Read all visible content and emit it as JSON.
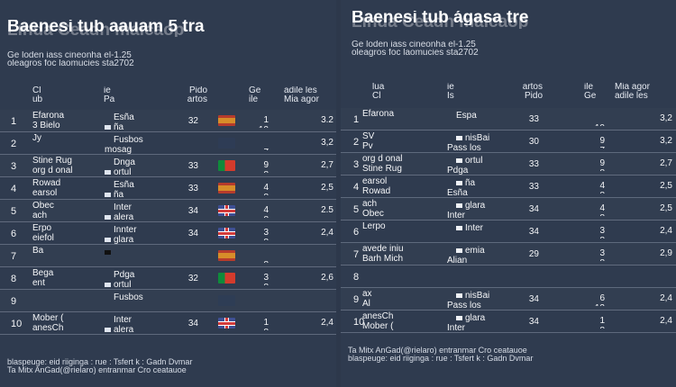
{
  "left": {
    "title_main": "Baenesi tub aauam 5 tra",
    "title_ghost": "Linda Ceadh maicaop",
    "subtitle_1": "Ge loden iass cineonha el-1.25",
    "subtitle_2": "oleagros foc laomucies sta2702",
    "headers": [
      {
        "key": "rank",
        "line1": "Cl",
        "line2": "ub"
      },
      {
        "key": "player",
        "line1": "ie",
        "line2": "Pa"
      },
      {
        "key": "matches",
        "line1": "Pido",
        "line2": "artos"
      },
      {
        "key": "goals",
        "line1": "Ge",
        "line2": "ile"
      },
      {
        "key": "avg",
        "line1": "adile les",
        "line2": "Mia agor"
      }
    ],
    "rows": [
      {
        "rank_ghost": "",
        "rank": "1",
        "player_1": "Efarona",
        "player_2": "3 Bielo",
        "country_1": "Esña",
        "country_2": "ña",
        "matches": "32",
        "goals_top": "1",
        "goals_bottom": "10",
        "avg": "3.2",
        "flag": "spain"
      },
      {
        "rank_ghost": "",
        "rank": "2",
        "player_1": "Jy",
        "player_2": "",
        "country_1": "Fusbos",
        "country_2": "mosag",
        "matches": "",
        "goals_top": "",
        "goals_bottom": "7",
        "avg": "3,2",
        "flag": "uk-ghost"
      },
      {
        "rank_ghost": "",
        "rank": "3",
        "player_1": "Stine Rug",
        "player_2": "org d onal",
        "country_1": "Dnga",
        "country_2": "ortul",
        "matches": "33",
        "goals_top": "9",
        "goals_bottom": "8",
        "avg": "2,7",
        "flag": "portugal"
      },
      {
        "rank_ghost": "",
        "rank": "4",
        "player_1": "Rowad",
        "player_2": "earsol",
        "country_1": "Esña",
        "country_2": "ña",
        "matches": "33",
        "goals_top": "4",
        "goals_bottom": "8",
        "avg": "2,5",
        "flag": "spain"
      },
      {
        "rank_ghost": "",
        "rank": "5",
        "player_1": "Obec",
        "player_2": "ach",
        "country_1": "Inter",
        "country_2": "alera",
        "matches": "34",
        "goals_top": "4",
        "goals_bottom": "8",
        "avg": "2.5",
        "flag": "uk"
      },
      {
        "rank_ghost": "",
        "rank": "6",
        "player_1": "Erpo",
        "player_2": "eiefol",
        "country_1": "Innter",
        "country_2": "glara",
        "matches": "34",
        "goals_top": "3",
        "goals_bottom": "8",
        "avg": "2,4",
        "flag": "uk"
      },
      {
        "rank_ghost": "",
        "rank": "7",
        "player_1": "Ba",
        "player_2": "",
        "country_1": "",
        "country_2": "",
        "matches": "",
        "goals_top": "",
        "goals_bottom": "8",
        "avg": "",
        "flag": "spain"
      },
      {
        "rank_ghost": "",
        "rank": "8",
        "player_1": "Bega",
        "player_2": "ent",
        "country_1": "Pdga",
        "country_2": "ortul",
        "matches": "32",
        "goals_top": "3",
        "goals_bottom": "8",
        "avg": "2,6",
        "flag": "portugal"
      },
      {
        "rank_ghost": "",
        "rank": "9",
        "player_1": "",
        "player_2": "",
        "country_1": "Fusbos",
        "country_2": "",
        "matches": "",
        "goals_top": "",
        "goals_bottom": "",
        "avg": "",
        "flag": "uk-ghost"
      },
      {
        "rank_ghost": "",
        "rank": "10",
        "player_1": "Mober (",
        "player_2": "anesCh",
        "country_1": "Inter",
        "country_2": "alera",
        "matches": "34",
        "goals_top": "1",
        "goals_bottom": "8",
        "avg": "2,4",
        "flag": "uk"
      }
    ],
    "footer_1": "blaspeuge: eid riiginga : rue : Tsfert k : Gadn Dvmar",
    "footer_2": "Ta Mitx AnGad(@rielaro) entranmar Cro ceatauoe"
  },
  "right": {
    "title_main": "Baenesi tub ágasa tre",
    "title_ghost": "Linda Ceadh maicaop",
    "subtitle_1": "Ge loden iass cineonha el-1.25",
    "subtitle_2": "oleagros foc laomucies sta2702",
    "headers": [
      {
        "key": "rank",
        "line1": "lua",
        "line2": "Cl"
      },
      {
        "key": "player",
        "line1": "ie",
        "line2": "Is"
      },
      {
        "key": "matches",
        "line1": "artos",
        "line2": "Pido"
      },
      {
        "key": "goals",
        "line1": "ile",
        "line2": "Ge"
      },
      {
        "key": "avg",
        "line1": "Mia agor",
        "line2": "adile les"
      }
    ],
    "rows": [
      {
        "rank": "1",
        "player_1": "Efarona",
        "player_2": "",
        "country_1": "Espa",
        "country_2": "",
        "matches": "33",
        "goals_top": "",
        "goals_bottom": "10",
        "avg": "3,2"
      },
      {
        "rank": "2",
        "player_1": "SV",
        "player_2": "Pv",
        "country_1": "nisBai",
        "country_2": "Pass los",
        "matches": "30",
        "goals_top": "9",
        "goals_bottom": "7",
        "avg": "3,2"
      },
      {
        "rank": "3",
        "player_1": "org d onal",
        "player_2": "Stine Rug",
        "country_1": "ortul",
        "country_2": "Pdga",
        "matches": "33",
        "goals_top": "9",
        "goals_bottom": "8",
        "avg": "2,7"
      },
      {
        "rank": "4",
        "player_1": "earsol",
        "player_2": "Rowad",
        "country_1": "ña",
        "country_2": "Esña",
        "matches": "33",
        "goals_top": "4",
        "goals_bottom": "8",
        "avg": "2,5"
      },
      {
        "rank": "5",
        "player_1": "ach",
        "player_2": "Obec",
        "country_1": "glara",
        "country_2": "Inter",
        "matches": "34",
        "goals_top": "4",
        "goals_bottom": "8",
        "avg": "2,5"
      },
      {
        "rank": "6",
        "player_1": "Lerpo",
        "player_2": "",
        "country_1": "Inter",
        "country_2": "",
        "matches": "34",
        "goals_top": "3",
        "goals_bottom": "8",
        "avg": "2,4"
      },
      {
        "rank": "7",
        "player_1": "avede iniu",
        "player_2": "Barh Mich",
        "country_1": "emia",
        "country_2": "Alian",
        "matches": "29",
        "goals_top": "3",
        "goals_bottom": "8",
        "avg": "2,9"
      },
      {
        "rank": "8",
        "player_1": "",
        "player_2": "",
        "country_1": "",
        "country_2": "",
        "matches": "",
        "goals_top": "",
        "goals_bottom": "",
        "avg": ""
      },
      {
        "rank": "9",
        "player_1": "ax",
        "player_2": "Al",
        "country_1": "nisBai",
        "country_2": "Pass los",
        "matches": "34",
        "goals_top": "6",
        "goals_bottom": "12",
        "avg": "2,4"
      },
      {
        "rank": "10",
        "player_1": "anesCh",
        "player_2": "Mober (",
        "country_1": "glara",
        "country_2": "Inter",
        "matches": "34",
        "goals_top": "1",
        "goals_bottom": "8",
        "avg": "2,4"
      }
    ],
    "footer_1": "Ta Mitx AnGad(@rielaro) entranmar Cro ceatauoe",
    "footer_2": "blaspeuge: eid riiginga : rue : Tsfert k : Gadn Dvmar"
  }
}
